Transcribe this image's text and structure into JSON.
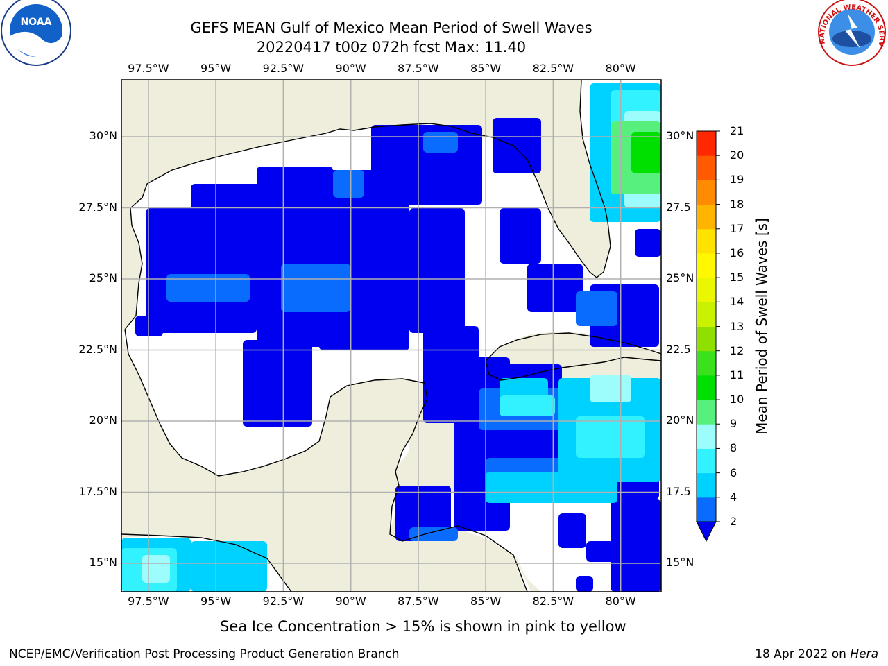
{
  "title": {
    "line1": "GEFS MEAN Gulf of Mexico Mean Period of Swell Waves",
    "line2": "20220417 t00z 072h fcst   Max: 11.40"
  },
  "axes": {
    "lon_labels": [
      "97.5°W",
      "95°W",
      "92.5°W",
      "90°W",
      "87.5°W",
      "85°W",
      "82.5°W",
      "80°W"
    ],
    "lat_labels_left": [
      "30°N",
      "27.5°N",
      "25°N",
      "22.5°N",
      "20°N",
      "17.5°N",
      "15°N"
    ],
    "lat_labels_right": [
      "30°N",
      "27.5",
      "25°N",
      "22.5",
      "20°N",
      "17.5",
      "15°N"
    ]
  },
  "colorbar": {
    "title": "Mean Period of Swell Waves [s]",
    "ticks": [
      "2",
      "4",
      "6",
      "8",
      "9",
      "10",
      "11",
      "12",
      "13",
      "14",
      "15",
      "16",
      "17",
      "18",
      "19",
      "20",
      "21"
    ],
    "colors": [
      "#0a6cff",
      "#00d2ff",
      "#33f2ff",
      "#9dfdfd",
      "#58f07c",
      "#00e000",
      "#3be11d",
      "#8fe000",
      "#c8f200",
      "#eaf700",
      "#fff800",
      "#ffe200",
      "#ffb400",
      "#ff8c00",
      "#ff5a00",
      "#ff2800"
    ],
    "under_color": "#0000f0"
  },
  "chart_data": {
    "type": "heatmap",
    "variable": "Mean Period of Swell Waves",
    "units": "s",
    "max_value": 11.4,
    "lon_range": [
      -98.5,
      -78.5
    ],
    "lat_range": [
      14,
      32
    ],
    "levels": [
      2,
      4,
      6,
      8,
      9,
      10,
      11,
      12,
      13,
      14,
      15,
      16,
      17,
      18,
      19,
      20,
      21
    ],
    "gridlines": true
  },
  "notes": {
    "sea_ice": "Sea Ice Concentration > 15% is shown in pink to yellow"
  },
  "footer": {
    "left": "NCEP/EMC/Verification Post Processing Product Generation Branch",
    "date": "18 Apr 2022 on ",
    "machine": "Hera"
  },
  "logos": {
    "left": "NOAA",
    "right": "NATIONAL WEATHER SERVICE"
  }
}
